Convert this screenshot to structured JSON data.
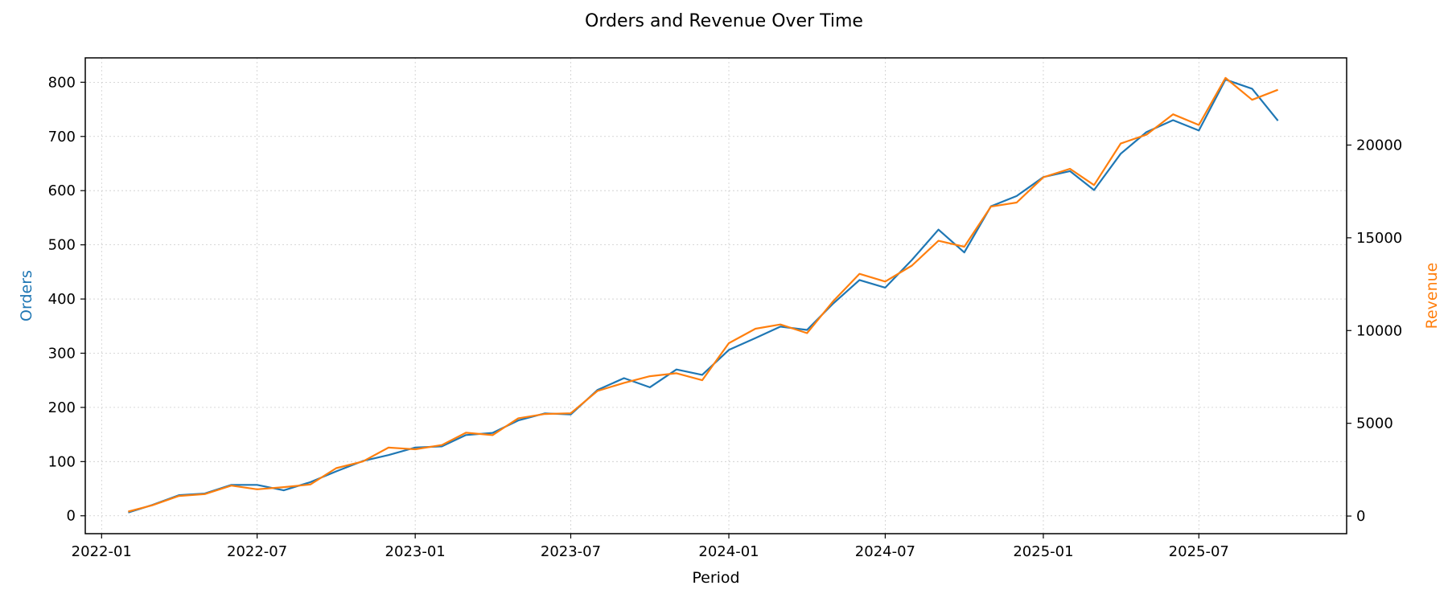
{
  "chart_data": {
    "type": "line",
    "title": "Orders and Revenue Over Time",
    "xlabel": "Period",
    "ylabel_left": "Orders",
    "ylabel_right": "Revenue",
    "x": [
      "2022-02",
      "2022-03",
      "2022-04",
      "2022-05",
      "2022-06",
      "2022-07",
      "2022-08",
      "2022-09",
      "2022-10",
      "2022-11",
      "2022-12",
      "2023-01",
      "2023-02",
      "2023-03",
      "2023-04",
      "2023-05",
      "2023-06",
      "2023-07",
      "2023-08",
      "2023-09",
      "2023-10",
      "2023-11",
      "2023-12",
      "2024-01",
      "2024-02",
      "2024-03",
      "2024-04",
      "2024-05",
      "2024-06",
      "2024-07",
      "2024-08",
      "2024-09",
      "2024-10",
      "2024-11",
      "2024-12",
      "2025-01",
      "2025-02",
      "2025-03",
      "2025-04",
      "2025-05",
      "2025-06",
      "2025-07",
      "2025-08",
      "2025-09",
      "2025-10"
    ],
    "xticks": [
      "2022-01",
      "2022-07",
      "2023-01",
      "2023-07",
      "2024-01",
      "2024-07",
      "2025-01",
      "2025-07"
    ],
    "xlim": [
      "2021-12-13",
      "2025-12-20"
    ],
    "series": [
      {
        "name": "Orders",
        "axis": "left",
        "color": "#1f77b4",
        "values": [
          6,
          20,
          38,
          41,
          57,
          57,
          47,
          62,
          82,
          101,
          112,
          126,
          128,
          149,
          153,
          176,
          189,
          187,
          232,
          254,
          237,
          270,
          260,
          306,
          328,
          349,
          343,
          391,
          435,
          421,
          472,
          528,
          486,
          571,
          590,
          625,
          636,
          601,
          668,
          708,
          730,
          711,
          805,
          788,
          729
        ]
      },
      {
        "name": "Revenue",
        "axis": "right",
        "color": "#ff7f0e",
        "values": [
          240,
          580,
          1080,
          1180,
          1640,
          1440,
          1560,
          1700,
          2580,
          2940,
          3690,
          3600,
          3830,
          4490,
          4360,
          5270,
          5500,
          5540,
          6740,
          7180,
          7540,
          7700,
          7320,
          9320,
          10100,
          10330,
          9860,
          11560,
          13060,
          12640,
          13500,
          14840,
          14520,
          16680,
          16900,
          18260,
          18720,
          17840,
          20080,
          20560,
          21660,
          21080,
          23620,
          22440,
          22980
        ]
      }
    ],
    "ylim_left": [
      -33,
      845
    ],
    "ylim_right": [
      -950,
      24700
    ],
    "yticks_left": [
      0,
      100,
      200,
      300,
      400,
      500,
      600,
      700,
      800
    ],
    "yticks_right": [
      0,
      5000,
      10000,
      15000,
      20000
    ],
    "grid": true
  }
}
